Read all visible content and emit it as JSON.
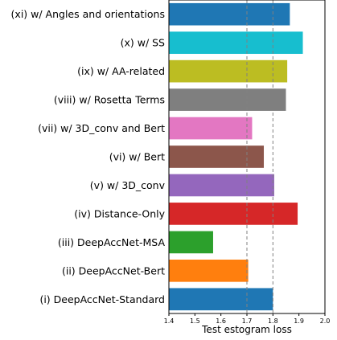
{
  "chart_data": {
    "type": "bar",
    "orientation": "horizontal",
    "title": "",
    "xlabel": "Test estogram loss",
    "ylabel": "",
    "xlim": [
      1.4,
      2.0
    ],
    "xticks": [
      1.4,
      1.5,
      1.6,
      1.7,
      1.8,
      1.9,
      2.0
    ],
    "reference_lines": [
      1.7,
      1.8
    ],
    "grid": false,
    "categories": [
      "(xi) w/ Angles and orientations",
      "(x) w/ SS",
      "(ix) w/ AA-related",
      "(viii) w/ Rosetta Terms",
      "(vii) w/ 3D_conv and Bert",
      "(vi) w/ Bert",
      "(v) w/ 3D_conv",
      "(iv) Distance-Only",
      "(iii) DeepAccNet-MSA",
      "(ii) DeepAccNet-Bert",
      "(i) DeepAccNet-Standard"
    ],
    "values": [
      1.865,
      1.915,
      1.855,
      1.85,
      1.72,
      1.765,
      1.805,
      1.895,
      1.57,
      1.705,
      1.8
    ],
    "colors": [
      "#1f77b4",
      "#17becf",
      "#bcbd22",
      "#7f7f7f",
      "#e377c2",
      "#8c564b",
      "#9467bd",
      "#d62728",
      "#2ca02c",
      "#ff7f0e",
      "#1f77b4"
    ]
  }
}
